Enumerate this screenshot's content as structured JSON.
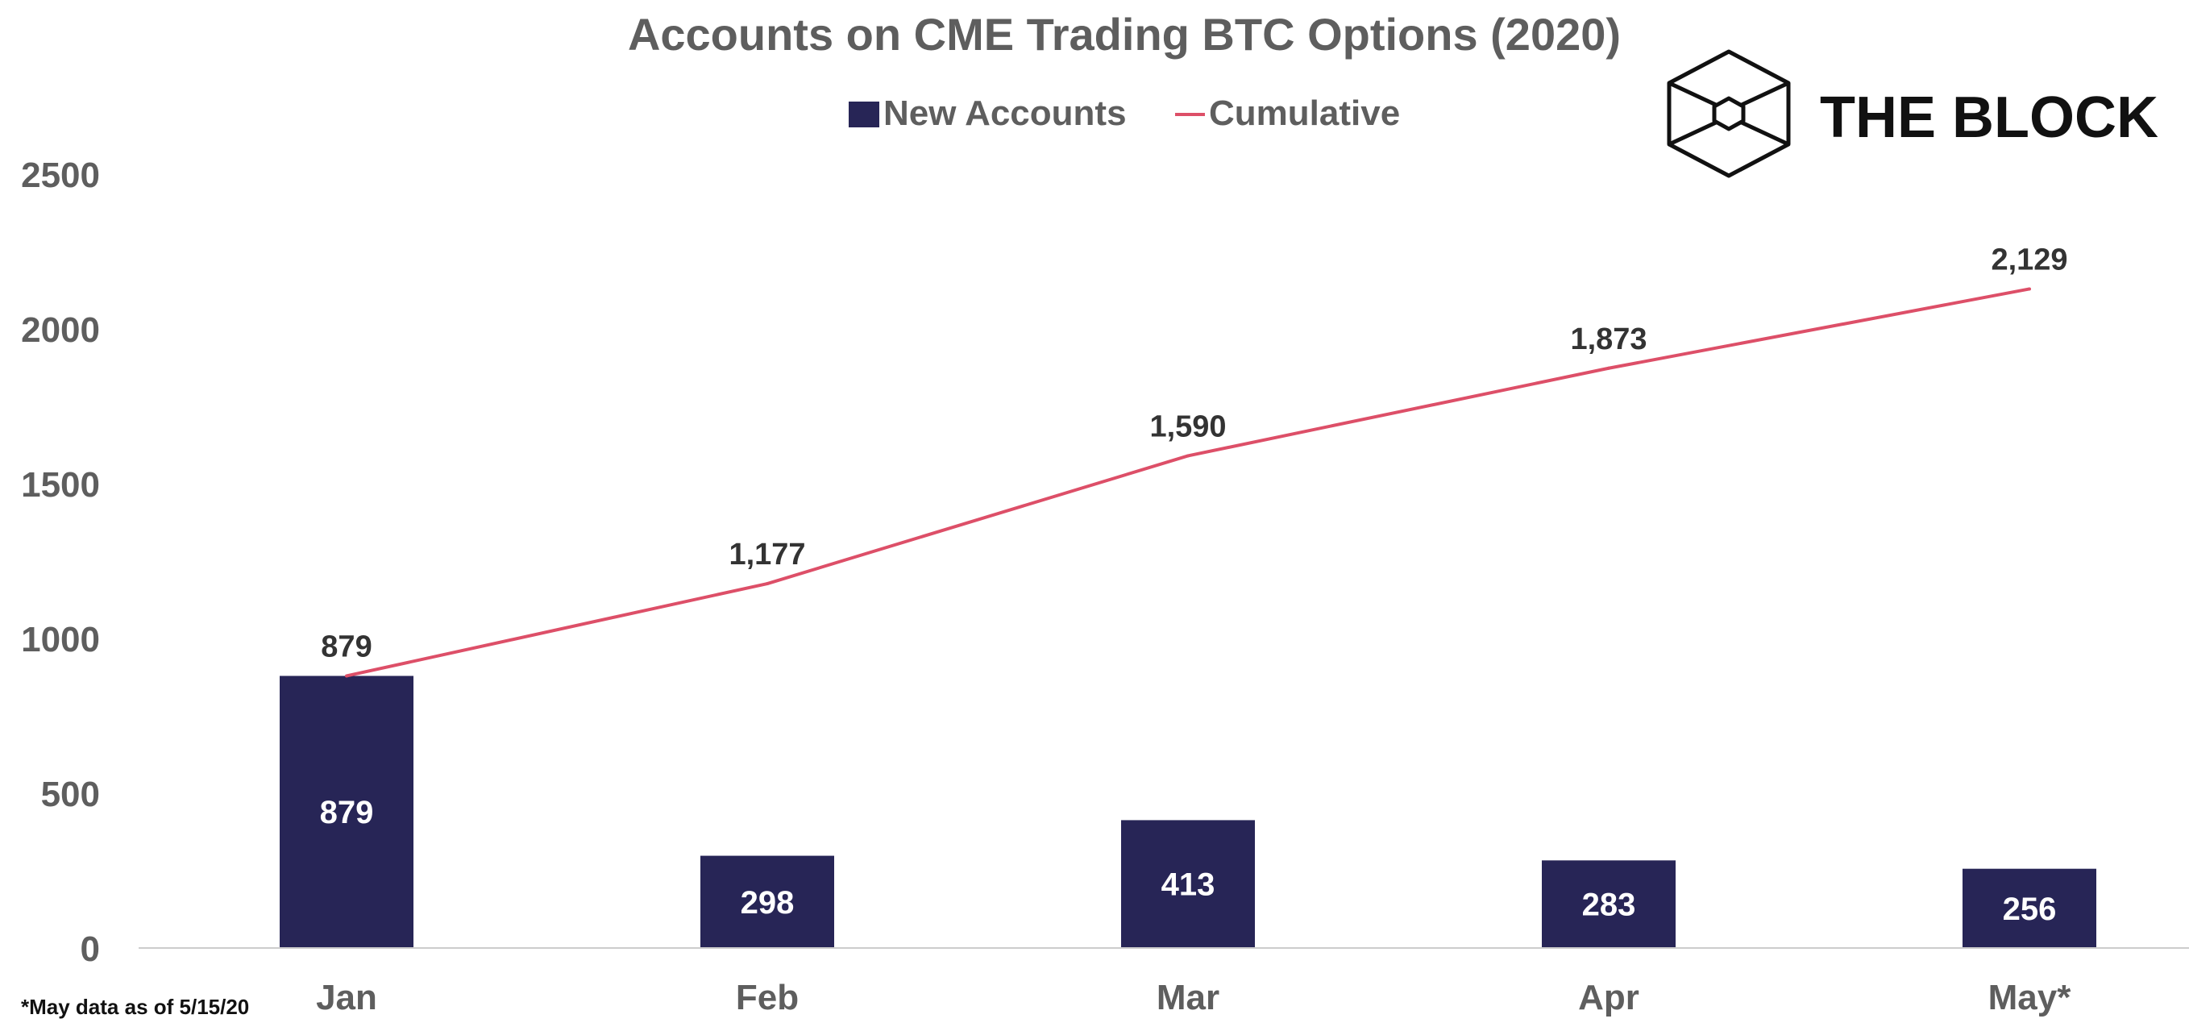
{
  "brand": {
    "name": "THE BLOCK",
    "logo_icon": "cube-icon"
  },
  "footnote": "*May data as of 5/15/20",
  "colors": {
    "bar": "#272556",
    "line": "#dd4f68",
    "axis": "#cccccc",
    "text": "#5e5e5e"
  },
  "chart_data": {
    "type": "bar",
    "title": "Accounts on CME Trading BTC Options (2020)",
    "xlabel": "",
    "ylabel": "",
    "categories": [
      "Jan",
      "Feb",
      "Mar",
      "Apr",
      "May*"
    ],
    "ylim": [
      0,
      2500
    ],
    "yticks": [
      "0",
      "500",
      "1000",
      "1500",
      "2000",
      "2500"
    ],
    "grid": false,
    "legend_placement": "top-center",
    "series": [
      {
        "name": "New Accounts",
        "type": "bar",
        "values": [
          879,
          298,
          413,
          283,
          256
        ],
        "labels": [
          "879",
          "298",
          "413",
          "283",
          "256"
        ]
      },
      {
        "name": "Cumulative",
        "type": "line",
        "values": [
          879,
          1177,
          1590,
          1873,
          2129
        ],
        "labels": [
          "879",
          "1,177",
          "1,590",
          "1,873",
          "2,129"
        ]
      }
    ]
  }
}
